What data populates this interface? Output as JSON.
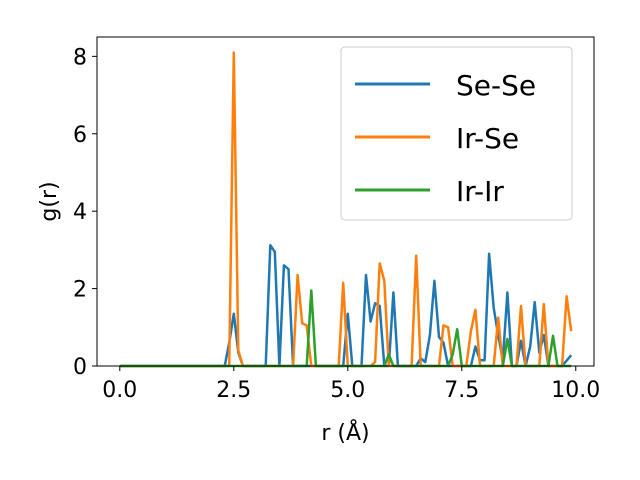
{
  "chart_data": {
    "type": "line",
    "title": "",
    "xlabel": "r (Å)",
    "ylabel": "g(r)",
    "xlim": [
      -0.5,
      10.4
    ],
    "ylim": [
      0,
      8.5
    ],
    "xticks": [
      0.0,
      2.5,
      5.0,
      7.5,
      10.0
    ],
    "xtick_labels": [
      "0.0",
      "2.5",
      "5.0",
      "7.5",
      "10.0"
    ],
    "yticks": [
      0,
      2,
      4,
      6,
      8
    ],
    "ytick_labels": [
      "0",
      "2",
      "4",
      "6",
      "8"
    ],
    "grid": false,
    "legend_position": "upper-right",
    "series": [
      {
        "name": "Se-Se",
        "color": "#1f77b4",
        "x": [
          0.0,
          2.3,
          2.4,
          2.5,
          2.6,
          2.7,
          3.2,
          3.3,
          3.4,
          3.5,
          3.6,
          3.7,
          3.8,
          4.7,
          4.9,
          5.0,
          5.1,
          5.3,
          5.4,
          5.5,
          5.6,
          5.7,
          5.8,
          5.9,
          6.0,
          6.1,
          6.5,
          6.6,
          6.7,
          6.8,
          6.9,
          7.0,
          7.1,
          7.2,
          7.7,
          7.8,
          7.9,
          8.0,
          8.1,
          8.2,
          8.3,
          8.4,
          8.5,
          8.6,
          8.7,
          8.8,
          8.9,
          9.0,
          9.1,
          9.2,
          9.3,
          9.4,
          9.7,
          9.9
        ],
        "y": [
          0,
          0,
          0.6,
          1.35,
          0.35,
          0,
          0,
          3.12,
          2.95,
          0,
          2.6,
          2.5,
          0,
          0,
          0,
          1.35,
          0,
          0,
          2.35,
          1.15,
          1.62,
          1.55,
          0,
          0,
          1.9,
          0,
          0,
          0.2,
          0.1,
          0.8,
          2.2,
          0.75,
          0.6,
          0,
          0,
          0.5,
          0.15,
          0.15,
          2.9,
          1.5,
          0.8,
          0.15,
          1.9,
          0,
          0,
          0.65,
          0,
          0.5,
          1.65,
          0.35,
          0.8,
          0,
          0,
          0.28
        ]
      },
      {
        "name": "Ir-Se",
        "color": "#ff7f0e",
        "x": [
          0.0,
          2.4,
          2.5,
          2.6,
          2.7,
          3.8,
          3.9,
          4.0,
          4.1,
          4.2,
          4.8,
          4.9,
          5.0,
          5.5,
          5.6,
          5.7,
          5.8,
          5.9,
          6.4,
          6.5,
          6.6,
          7.0,
          7.1,
          7.2,
          7.3,
          7.6,
          7.7,
          7.8,
          7.9,
          8.2,
          8.3,
          8.4,
          8.7,
          8.8,
          8.9,
          9.2,
          9.3,
          9.4,
          9.7,
          9.8,
          9.9
        ],
        "y": [
          0,
          0,
          8.1,
          0.4,
          0,
          0,
          2.35,
          1.1,
          1.05,
          0,
          0,
          2.15,
          0,
          0,
          0.1,
          2.65,
          2.2,
          0,
          0,
          2.85,
          0,
          0,
          1.05,
          1.0,
          0,
          0,
          0.9,
          1.45,
          0,
          0,
          1.25,
          0,
          0,
          1.55,
          0,
          0,
          1.6,
          0,
          0,
          1.8,
          0.9
        ]
      },
      {
        "name": "Ir-Ir",
        "color": "#2ca02c",
        "x": [
          0.0,
          4.1,
          4.2,
          4.3,
          5.8,
          5.9,
          6.0,
          7.2,
          7.3,
          7.4,
          7.5,
          8.4,
          8.5,
          8.6,
          9.4,
          9.5,
          9.6,
          9.9
        ],
        "y": [
          0,
          0,
          1.95,
          0,
          0,
          0.3,
          0,
          0,
          0.3,
          0.95,
          0,
          0,
          0.7,
          0,
          0,
          0.78,
          0,
          0
        ]
      }
    ]
  }
}
